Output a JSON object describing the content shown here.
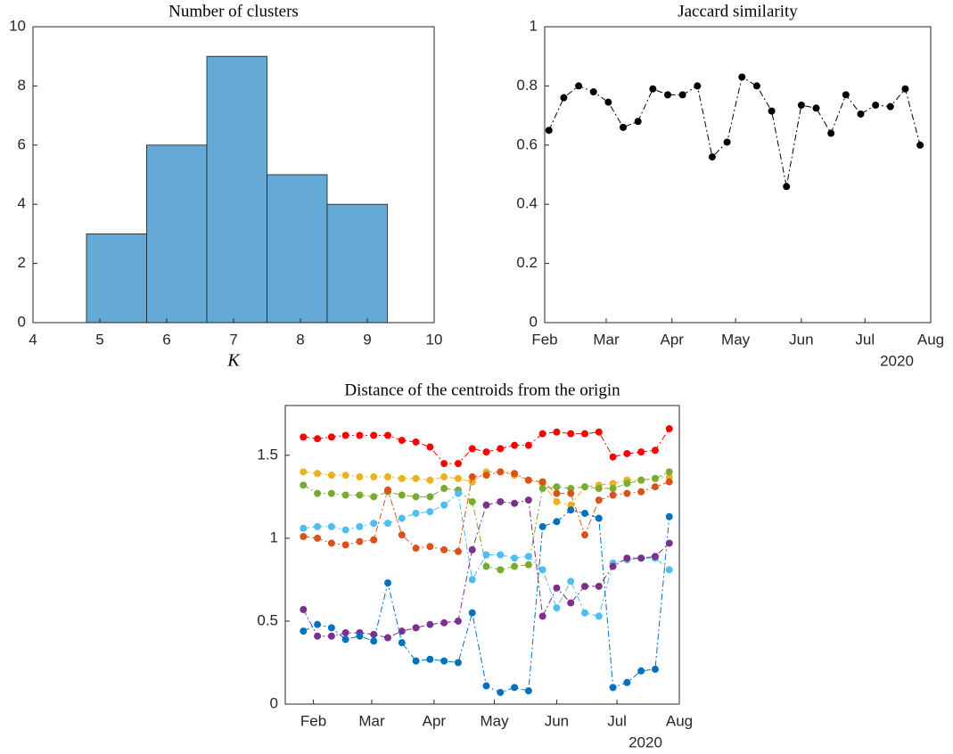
{
  "chart_data": [
    {
      "type": "histogram",
      "title": "Number of clusters",
      "xlabel": "K",
      "bins": [
        4.8,
        5.7,
        6.6,
        7.5,
        8.4,
        9.3
      ],
      "values": [
        3,
        6,
        9,
        5,
        4
      ],
      "color": "#65a9d7",
      "xlim": [
        4,
        10
      ],
      "xticks": [
        4,
        5,
        6,
        7,
        8,
        9,
        10
      ],
      "ylim": [
        0,
        10
      ],
      "yticks": [
        0,
        2,
        4,
        6,
        8,
        10
      ]
    },
    {
      "type": "line",
      "title": "Jaccard similarity",
      "x_year": "2020",
      "x": [
        34,
        41,
        48,
        55,
        62,
        69,
        76,
        83,
        90,
        97,
        104,
        111,
        118,
        125,
        132,
        139,
        146,
        153,
        160,
        167,
        174,
        181,
        188,
        195,
        202,
        209
      ],
      "series": [
        {
          "color": "#000000",
          "values": [
            0.65,
            0.76,
            0.8,
            0.78,
            0.745,
            0.66,
            0.68,
            0.79,
            0.77,
            0.77,
            0.8,
            0.56,
            0.61,
            0.83,
            0.8,
            0.715,
            0.46,
            0.735,
            0.725,
            0.64,
            0.77,
            0.705,
            0.735,
            0.73,
            0.79,
            0.6
          ]
        }
      ],
      "line_style": "dashdot",
      "xlim": [
        32,
        214
      ],
      "xticks": [
        {
          "value": 32,
          "label": "Feb"
        },
        {
          "value": 61,
          "label": "Mar"
        },
        {
          "value": 92,
          "label": "Apr"
        },
        {
          "value": 122,
          "label": "May"
        },
        {
          "value": 153,
          "label": "Jun"
        },
        {
          "value": 183,
          "label": "Jul"
        },
        {
          "value": 214,
          "label": "Aug"
        }
      ],
      "ylim": [
        0,
        1
      ],
      "yticks": [
        0,
        0.2,
        0.4,
        0.6,
        0.8,
        1
      ]
    },
    {
      "type": "line",
      "title": "Distance of the centroids from the origin",
      "x_year": "2020",
      "x": [
        27,
        34,
        41,
        48,
        55,
        62,
        69,
        76,
        83,
        90,
        97,
        104,
        111,
        118,
        125,
        132,
        139,
        146,
        153,
        160,
        167,
        174,
        181,
        188,
        195,
        202,
        209
      ],
      "series": [
        {
          "color": "#ff0000",
          "values": [
            1.61,
            1.6,
            1.61,
            1.62,
            1.62,
            1.62,
            1.62,
            1.59,
            1.58,
            1.55,
            1.45,
            1.45,
            1.54,
            1.52,
            1.54,
            1.56,
            1.56,
            1.63,
            1.64,
            1.63,
            1.63,
            1.64,
            1.49,
            1.51,
            1.52,
            1.53,
            1.66
          ]
        },
        {
          "color": "#edb120",
          "values": [
            1.4,
            1.39,
            1.38,
            1.38,
            1.37,
            1.37,
            1.37,
            1.36,
            1.36,
            1.35,
            1.37,
            1.36,
            1.34,
            1.4,
            1.4,
            1.38,
            1.35,
            1.33,
            1.22,
            1.2,
            1.31,
            1.32,
            1.33,
            1.35,
            1.35,
            1.36,
            1.37
          ]
        },
        {
          "color": "#77ac30",
          "values": [
            1.32,
            1.27,
            1.27,
            1.26,
            1.26,
            1.25,
            1.28,
            1.26,
            1.25,
            1.25,
            1.3,
            1.29,
            1.22,
            0.83,
            0.81,
            0.83,
            0.84,
            1.3,
            1.31,
            1.3,
            1.31,
            1.3,
            1.3,
            1.33,
            1.35,
            1.36,
            1.4
          ]
        },
        {
          "color": "#4dbeee",
          "values": [
            1.06,
            1.07,
            1.07,
            1.05,
            1.07,
            1.09,
            1.09,
            1.12,
            1.15,
            1.16,
            1.2,
            1.27,
            0.75,
            0.9,
            0.9,
            0.88,
            0.89,
            0.81,
            0.58,
            0.74,
            0.55,
            0.53,
            0.85,
            0.87,
            0.88,
            0.88,
            0.81
          ]
        },
        {
          "color": "#d95319",
          "values": [
            1.01,
            1.0,
            0.97,
            0.96,
            0.98,
            0.99,
            1.29,
            1.02,
            0.94,
            0.95,
            0.93,
            0.92,
            1.37,
            1.38,
            1.4,
            1.39,
            1.35,
            1.34,
            1.27,
            1.27,
            1.02,
            1.23,
            1.26,
            1.27,
            1.28,
            1.31,
            1.34
          ]
        },
        {
          "color": "#7e2f8e",
          "values": [
            0.57,
            0.41,
            0.41,
            0.43,
            0.43,
            0.42,
            0.4,
            0.44,
            0.46,
            0.48,
            0.49,
            0.5,
            0.93,
            1.2,
            1.22,
            1.21,
            1.23,
            0.53,
            0.7,
            0.61,
            0.71,
            0.71,
            0.83,
            0.88,
            0.88,
            0.89,
            0.97
          ]
        },
        {
          "color": "#0072bd",
          "values": [
            0.44,
            0.48,
            0.46,
            0.39,
            0.41,
            0.38,
            0.73,
            0.37,
            0.26,
            0.27,
            0.26,
            0.25,
            0.55,
            0.11,
            0.07,
            0.1,
            0.08,
            1.07,
            1.1,
            1.17,
            1.15,
            1.12,
            0.1,
            0.13,
            0.2,
            0.21,
            1.13
          ]
        }
      ],
      "line_style": "dashdot",
      "xlim": [
        18,
        214
      ],
      "xticks": [
        {
          "value": 32,
          "label": "Feb"
        },
        {
          "value": 61,
          "label": "Mar"
        },
        {
          "value": 92,
          "label": "Apr"
        },
        {
          "value": 122,
          "label": "May"
        },
        {
          "value": 153,
          "label": "Jun"
        },
        {
          "value": 183,
          "label": "Jul"
        },
        {
          "value": 214,
          "label": "Aug"
        }
      ],
      "ylim": [
        0,
        1.8
      ],
      "yticks": [
        0,
        0.5,
        1,
        1.5
      ]
    }
  ]
}
